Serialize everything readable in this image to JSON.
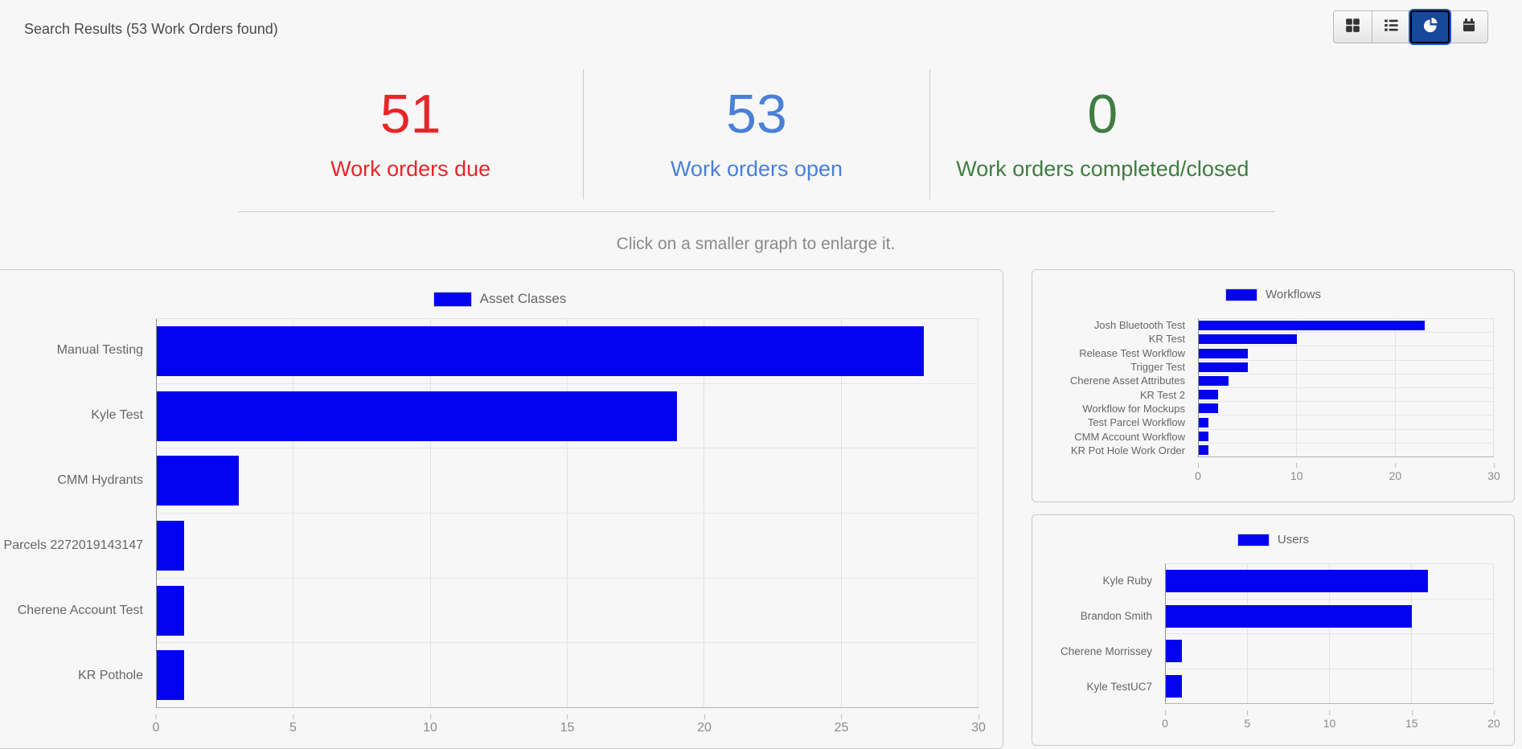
{
  "header": {
    "title": "Search Results (53 Work Orders found)"
  },
  "toolbar": {
    "active_bg": "#17499b",
    "buttons": [
      {
        "name": "grid-view",
        "icon": "th-large-icon",
        "active": false
      },
      {
        "name": "list-view",
        "icon": "list-icon",
        "active": false
      },
      {
        "name": "chart-view",
        "icon": "pie-chart-icon",
        "active": true
      },
      {
        "name": "calendar-view",
        "icon": "calendar-icon",
        "active": false
      }
    ]
  },
  "stats": [
    {
      "value": "51",
      "label": "Work orders due",
      "color": "#e8262a"
    },
    {
      "value": "53",
      "label": "Work orders open",
      "color": "#4a80d8"
    },
    {
      "value": "0",
      "label": "Work orders completed/closed",
      "color": "#3f7d40"
    }
  ],
  "hint": "Click on a smaller graph to enlarge it.",
  "chart_data": [
    {
      "id": "assetClasses",
      "type": "bar",
      "orientation": "horizontal",
      "title": "Asset Classes",
      "legend": "Asset Classes",
      "legend_position": "top",
      "bar_color": "#0303f0",
      "grid": true,
      "categories": [
        "Manual Testing",
        "Kyle Test",
        "CMM Hydrants",
        "Parcels 2272019143147",
        "Cherene Account Test",
        "KR Pothole"
      ],
      "values": [
        28,
        19,
        3,
        1,
        1,
        1
      ],
      "xlim": [
        0,
        30
      ],
      "xticks": [
        0,
        5,
        10,
        15,
        20,
        25,
        30
      ]
    },
    {
      "id": "workflows",
      "type": "bar",
      "orientation": "horizontal",
      "title": "Workflows",
      "legend": "Workflows",
      "legend_position": "top",
      "bar_color": "#0303f0",
      "grid": true,
      "categories": [
        "Josh Bluetooth Test",
        "KR Test",
        "Release Test Workflow",
        "Trigger Test",
        "Cherene Asset Attributes",
        "KR Test 2",
        "Workflow for Mockups",
        "Test Parcel Workflow",
        "CMM Account Workflow",
        "KR Pot Hole Work Order"
      ],
      "values": [
        23,
        10,
        5,
        5,
        3,
        2,
        2,
        1,
        1,
        1
      ],
      "xlim": [
        0,
        30
      ],
      "xticks": [
        0,
        10,
        20,
        30
      ]
    },
    {
      "id": "users",
      "type": "bar",
      "orientation": "horizontal",
      "title": "Users",
      "legend": "Users",
      "legend_position": "top",
      "bar_color": "#0303f0",
      "grid": true,
      "categories": [
        "Kyle Ruby",
        "Brandon Smith",
        "Cherene Morrissey",
        "Kyle TestUC7"
      ],
      "values": [
        16,
        15,
        1,
        1
      ],
      "xlim": [
        0,
        20
      ],
      "xticks": [
        0,
        5,
        10,
        15,
        20
      ]
    }
  ]
}
